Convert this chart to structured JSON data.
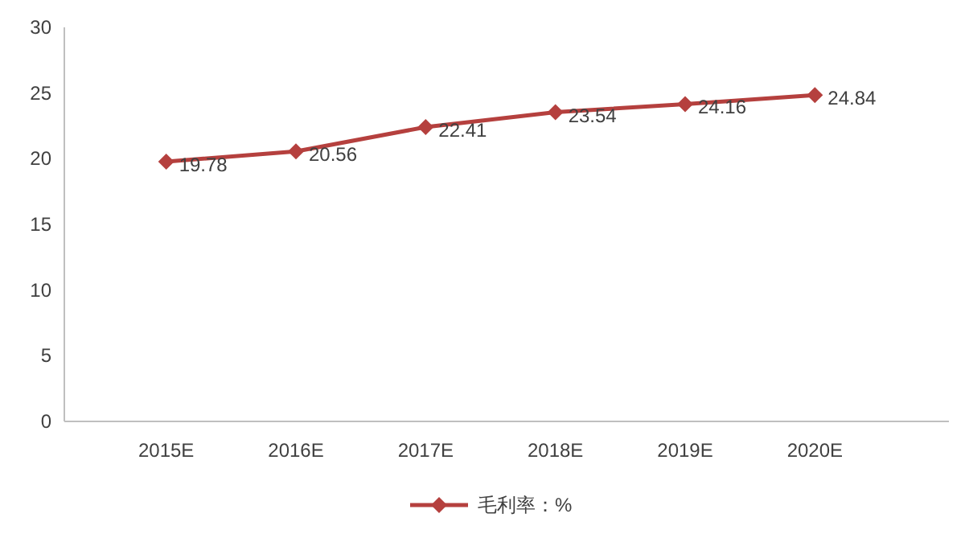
{
  "chart_data": {
    "type": "line",
    "categories": [
      "2015E",
      "2016E",
      "2017E",
      "2018E",
      "2019E",
      "2020E"
    ],
    "series": [
      {
        "name": "毛利率：%",
        "color": "#b5403e",
        "values": [
          19.78,
          20.56,
          22.41,
          23.54,
          24.16,
          24.84
        ]
      }
    ],
    "ylim": [
      0,
      30
    ],
    "yticks": [
      0,
      5,
      10,
      15,
      20,
      25,
      30
    ],
    "data_labels": true,
    "legend": "bottom",
    "marker": "diamond",
    "grid": false
  }
}
